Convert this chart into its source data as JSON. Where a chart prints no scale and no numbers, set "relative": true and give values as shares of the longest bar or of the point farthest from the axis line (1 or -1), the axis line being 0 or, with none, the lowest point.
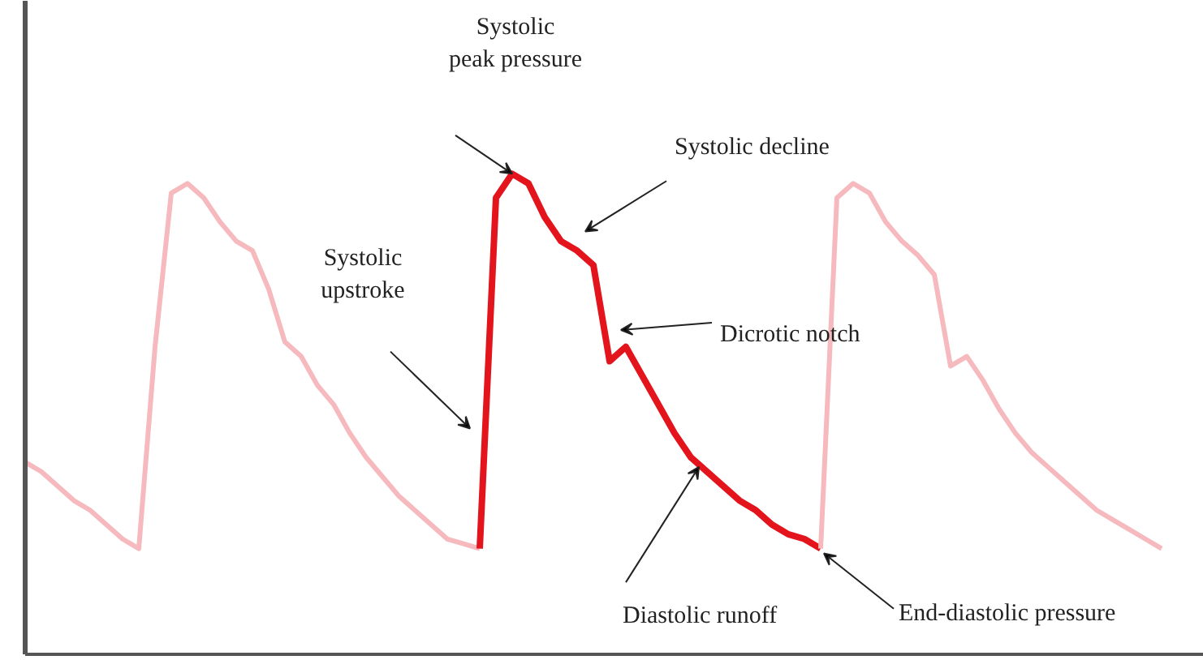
{
  "chart_data": {
    "type": "line",
    "relative": true,
    "grid": false,
    "marker": "none",
    "line_style": "solid",
    "categories": [
      null,
      null,
      null,
      null,
      null,
      null,
      null,
      null,
      null,
      null,
      null,
      null,
      null,
      null,
      null,
      null,
      null,
      null,
      null,
      null,
      null,
      null,
      null,
      null,
      null,
      null,
      null,
      null,
      null,
      null,
      null,
      null,
      null,
      null,
      null,
      null,
      null,
      null,
      null,
      null,
      null,
      null,
      null,
      null,
      null,
      null,
      null,
      null,
      null,
      null,
      null,
      null,
      null,
      null,
      null,
      null,
      null,
      null,
      null,
      null,
      null,
      null,
      null,
      null,
      null,
      null,
      null,
      null,
      null,
      null,
      null
    ],
    "series": [
      {
        "color": "#f6b9bd",
        "values": [
          0.4,
          0.38,
          0.35,
          0.32,
          0.3,
          0.27,
          0.24,
          0.22,
          0.64,
          0.96,
          0.98,
          0.95,
          0.9,
          0.86,
          0.84,
          0.76,
          0.65,
          0.62,
          0.56,
          0.52,
          0.46,
          0.41,
          0.37,
          0.33,
          0.3,
          0.27,
          0.24,
          0.23,
          0.22,
          null,
          null,
          null,
          null,
          null,
          null,
          null,
          null,
          null,
          null,
          null,
          null,
          null,
          null,
          null,
          null,
          null,
          null,
          null,
          null,
          null,
          null,
          null,
          null,
          null,
          null,
          null,
          null,
          null,
          null,
          null,
          null,
          null,
          null,
          null,
          null,
          null,
          null,
          null,
          null,
          null,
          null
        ]
      },
      {
        "color": "#e3141c",
        "values": [
          null,
          null,
          null,
          null,
          null,
          null,
          null,
          null,
          null,
          null,
          null,
          null,
          null,
          null,
          null,
          null,
          null,
          null,
          null,
          null,
          null,
          null,
          null,
          null,
          null,
          null,
          null,
          null,
          0.22,
          0.95,
          1.0,
          0.98,
          0.91,
          0.86,
          0.84,
          0.81,
          0.61,
          0.64,
          0.58,
          0.52,
          0.46,
          0.41,
          0.38,
          0.35,
          0.32,
          0.3,
          0.27,
          0.25,
          0.24,
          0.22,
          null,
          null,
          null,
          null,
          null,
          null,
          null,
          null,
          null,
          null,
          null,
          null,
          null,
          null,
          null,
          null,
          null,
          null,
          null,
          null,
          null
        ]
      },
      {
        "color": "#f6b9bd",
        "values": [
          null,
          null,
          null,
          null,
          null,
          null,
          null,
          null,
          null,
          null,
          null,
          null,
          null,
          null,
          null,
          null,
          null,
          null,
          null,
          null,
          null,
          null,
          null,
          null,
          null,
          null,
          null,
          null,
          null,
          null,
          null,
          null,
          null,
          null,
          null,
          null,
          null,
          null,
          null,
          null,
          null,
          null,
          null,
          null,
          null,
          null,
          null,
          null,
          null,
          0.22,
          0.95,
          0.98,
          0.96,
          0.9,
          0.86,
          0.83,
          0.79,
          0.6,
          0.62,
          0.57,
          0.51,
          0.46,
          0.42,
          0.39,
          0.36,
          0.33,
          0.3,
          0.28,
          0.26,
          0.24,
          0.22
        ]
      }
    ],
    "annotations": [
      "Systolic peak pressure",
      "Systolic decline",
      "Systolic upstroke",
      "Dicrotic notch",
      "Diastolic runoff",
      "End-diastolic pressure"
    ]
  }
}
